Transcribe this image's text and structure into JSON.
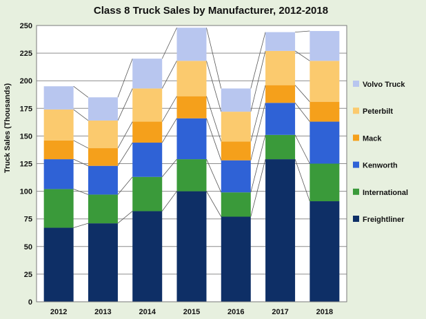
{
  "chart_data": {
    "type": "bar",
    "stacked": true,
    "title": "Class 8 Truck Sales by Manufacturer, 2012-2018",
    "xlabel": "",
    "ylabel": "Truck Sales (Thousands)",
    "ylim": [
      0,
      250
    ],
    "yticks": [
      0,
      25,
      50,
      75,
      100,
      125,
      150,
      175,
      200,
      225,
      250
    ],
    "categories": [
      "2012",
      "2013",
      "2014",
      "2015",
      "2016",
      "2017",
      "2018"
    ],
    "series": [
      {
        "name": "Freightliner",
        "color": "#0e2f66",
        "values": [
          67,
          71,
          82,
          100,
          77,
          129,
          91
        ]
      },
      {
        "name": "International",
        "color": "#3a9a3a",
        "values": [
          35,
          26,
          31,
          29,
          22,
          22,
          34
        ]
      },
      {
        "name": "Kenworth",
        "color": "#2f62d6",
        "values": [
          27,
          26,
          31,
          37,
          29,
          29,
          38
        ]
      },
      {
        "name": "Mack",
        "color": "#f5a01b",
        "values": [
          17,
          16,
          19,
          20,
          17,
          16,
          18
        ]
      },
      {
        "name": "Peterbilt",
        "color": "#fbca6e",
        "values": [
          28,
          25,
          30,
          32,
          27,
          31,
          37
        ]
      },
      {
        "name": "Volvo Truck",
        "color": "#b8c6ef",
        "values": [
          21,
          21,
          27,
          30,
          21,
          17,
          27
        ]
      }
    ],
    "legend_order": [
      "Volvo Truck",
      "Peterbilt",
      "Mack",
      "Kenworth",
      "International",
      "Freightliner"
    ],
    "legend_position": "right",
    "grid": true,
    "connector_lines": true
  }
}
